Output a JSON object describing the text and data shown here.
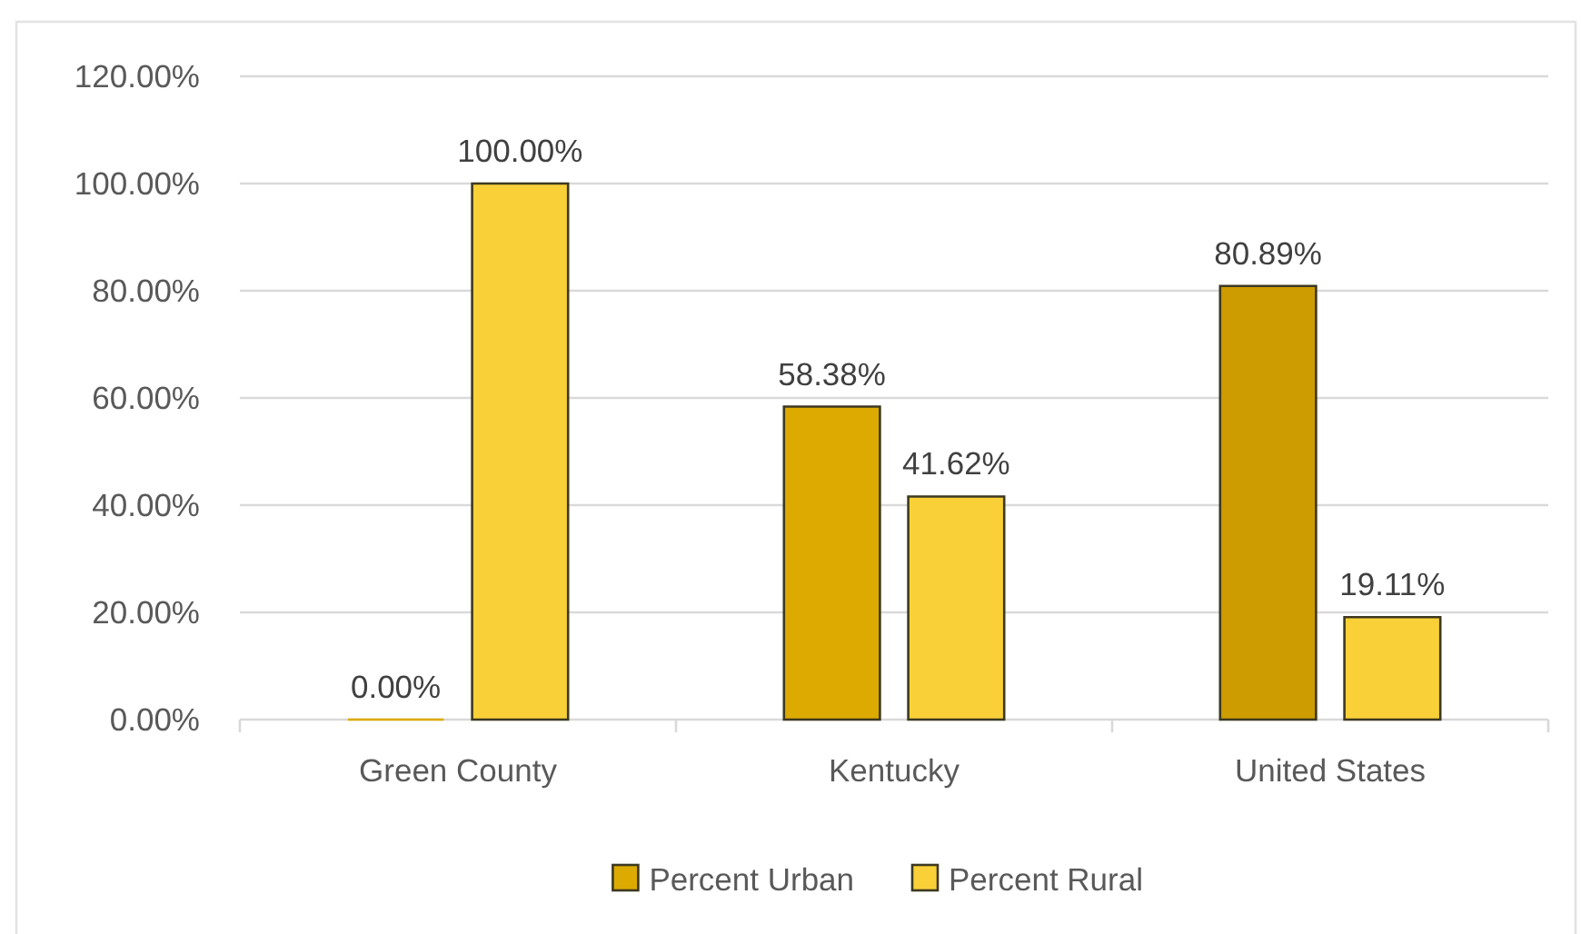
{
  "chart_data": {
    "type": "bar",
    "categories": [
      "Green County",
      "Kentucky",
      "United States"
    ],
    "series": [
      {
        "name": "Percent Urban",
        "color": "#dcaa00",
        "colors": [
          "#dcaa00",
          "#dcaa00",
          "#cc9c00"
        ],
        "values": [
          0,
          58.38,
          80.89
        ],
        "value_labels": [
          "0.00%",
          "58.38%",
          "80.89%"
        ]
      },
      {
        "name": "Percent Rural",
        "color": "#f9d038",
        "values": [
          100,
          41.62,
          19.11
        ],
        "value_labels": [
          "100.00%",
          "41.62%",
          "19.11%"
        ]
      }
    ],
    "ylim": [
      0,
      120
    ],
    "yticks": [
      {
        "value": 0,
        "label": "0.00%"
      },
      {
        "value": 20,
        "label": "20.00%"
      },
      {
        "value": 40,
        "label": "40.00%"
      },
      {
        "value": 60,
        "label": "60.00%"
      },
      {
        "value": 80,
        "label": "80.00%"
      },
      {
        "value": 100,
        "label": "100.00%"
      },
      {
        "value": 120,
        "label": "120.00%"
      }
    ],
    "grid": "y",
    "legend": "bottom"
  }
}
